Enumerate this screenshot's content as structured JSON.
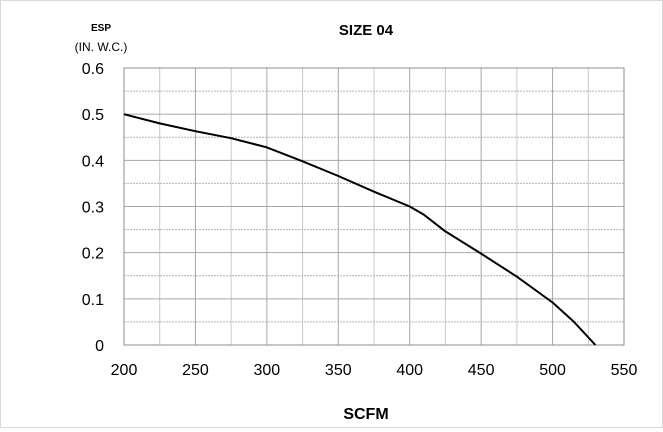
{
  "chart_data": {
    "type": "line",
    "title": "SIZE 04",
    "ylabel": [
      "ESP",
      "(IN. W.C.)"
    ],
    "xlabel": "SCFM",
    "xlim": [
      200,
      550
    ],
    "ylim": [
      0,
      0.6
    ],
    "x_ticks": [
      "200",
      "250",
      "300",
      "350",
      "400",
      "450",
      "500",
      "550"
    ],
    "y_ticks": [
      "0",
      "0.1",
      "0.2",
      "0.3",
      "0.4",
      "0.5",
      "0.6"
    ],
    "grid": true,
    "minor_grid": true,
    "series": [
      {
        "color": "#000000",
        "points": [
          [
            200,
            0.5
          ],
          [
            225,
            0.48
          ],
          [
            250,
            0.463
          ],
          [
            275,
            0.448
          ],
          [
            300,
            0.428
          ],
          [
            325,
            0.398
          ],
          [
            350,
            0.366
          ],
          [
            375,
            0.332
          ],
          [
            400,
            0.3
          ],
          [
            410,
            0.282
          ],
          [
            425,
            0.246
          ],
          [
            450,
            0.198
          ],
          [
            475,
            0.148
          ],
          [
            500,
            0.092
          ],
          [
            515,
            0.05
          ],
          [
            530,
            0.0
          ]
        ]
      }
    ]
  }
}
